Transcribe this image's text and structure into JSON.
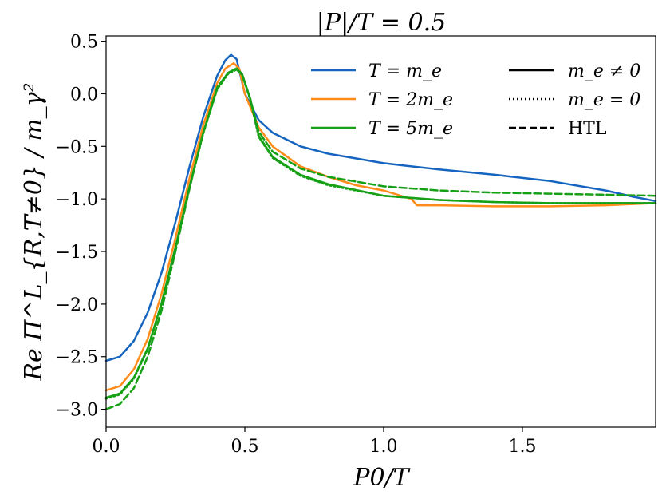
{
  "chart_data": {
    "type": "line",
    "title": "|P|/T = 0.5",
    "xlabel": "P0/T",
    "ylabel": "Re Π^L_{R,T≠0} / m_γ²",
    "xlim": [
      0.0,
      1.98
    ],
    "ylim": [
      -3.17,
      0.55
    ],
    "x_ticks": [
      0.0,
      0.5,
      1.0,
      1.5
    ],
    "x_tick_labels": [
      "0.0",
      "0.5",
      "1.0",
      "1.5"
    ],
    "y_ticks": [
      0.5,
      0.0,
      -0.5,
      -1.0,
      -1.5,
      -2.0,
      -2.5,
      -3.0
    ],
    "y_tick_labels": [
      "0.5",
      "0.0",
      "−0.5",
      "−1.0",
      "−1.5",
      "−2.0",
      "−2.5",
      "−3.0"
    ],
    "grid": false,
    "colors": {
      "blue": "#1565c0",
      "orange": "#ff8c1a",
      "green": "#16a016"
    },
    "legend_colors": [
      {
        "label": "T = m_e",
        "color": "#1565c0"
      },
      {
        "label": "T = 2m_e",
        "color": "#ff8c1a"
      },
      {
        "label": "T = 5m_e",
        "color": "#16a016"
      }
    ],
    "legend_styles": [
      {
        "label": "m_e ≠ 0",
        "style": "solid"
      },
      {
        "label": "m_e = 0",
        "style": "dotted"
      },
      {
        "label": "HTL",
        "style": "dashed"
      }
    ],
    "series": [
      {
        "name": "T = m_e, m_e ≠ 0",
        "color": "#1565c0",
        "style": "solid",
        "x": [
          0.0,
          0.05,
          0.1,
          0.15,
          0.2,
          0.25,
          0.3,
          0.35,
          0.4,
          0.43,
          0.45,
          0.47,
          0.5,
          0.55,
          0.6,
          0.7,
          0.8,
          1.0,
          1.2,
          1.4,
          1.6,
          1.8,
          1.9,
          1.98
        ],
        "y": [
          -2.54,
          -2.5,
          -2.35,
          -2.08,
          -1.7,
          -1.22,
          -0.7,
          -0.22,
          0.17,
          0.32,
          0.37,
          0.33,
          0.0,
          -0.25,
          -0.37,
          -0.5,
          -0.57,
          -0.66,
          -0.72,
          -0.77,
          -0.83,
          -0.92,
          -0.98,
          -1.02
        ]
      },
      {
        "name": "T = 2m_e, m_e ≠ 0",
        "color": "#ff8c1a",
        "style": "solid",
        "x": [
          0.0,
          0.05,
          0.1,
          0.15,
          0.2,
          0.25,
          0.3,
          0.35,
          0.4,
          0.43,
          0.46,
          0.48,
          0.5,
          0.55,
          0.6,
          0.7,
          0.8,
          0.9,
          1.0,
          1.1,
          1.12,
          1.2,
          1.4,
          1.6,
          1.8,
          1.98
        ],
        "y": [
          -2.82,
          -2.78,
          -2.62,
          -2.33,
          -1.9,
          -1.37,
          -0.81,
          -0.3,
          0.1,
          0.24,
          0.29,
          0.24,
          0.0,
          -0.32,
          -0.5,
          -0.69,
          -0.79,
          -0.87,
          -0.92,
          -1.0,
          -1.06,
          -1.06,
          -1.07,
          -1.07,
          -1.06,
          -1.04
        ]
      },
      {
        "name": "T = 5m_e, m_e ≠ 0",
        "color": "#16a016",
        "style": "solid",
        "x": [
          0.0,
          0.05,
          0.1,
          0.15,
          0.2,
          0.25,
          0.3,
          0.35,
          0.4,
          0.44,
          0.47,
          0.49,
          0.52,
          0.55,
          0.6,
          0.7,
          0.8,
          1.0,
          1.2,
          1.4,
          1.6,
          1.8,
          1.98
        ],
        "y": [
          -2.89,
          -2.85,
          -2.7,
          -2.42,
          -1.99,
          -1.46,
          -0.89,
          -0.37,
          0.05,
          0.2,
          0.24,
          0.19,
          -0.05,
          -0.4,
          -0.6,
          -0.77,
          -0.86,
          -0.97,
          -1.01,
          -1.03,
          -1.04,
          -1.04,
          -1.04
        ]
      },
      {
        "name": "T = 5m_e, m_e = 0",
        "color": "#16a016",
        "style": "dotted",
        "x": [
          0.0,
          0.05,
          0.1,
          0.15,
          0.2,
          0.25,
          0.3,
          0.35,
          0.4,
          0.44,
          0.47,
          0.49,
          0.52,
          0.55,
          0.6,
          0.7,
          0.8,
          1.0,
          1.2,
          1.4,
          1.6,
          1.8,
          1.98
        ],
        "y": [
          -2.9,
          -2.86,
          -2.71,
          -2.43,
          -2.0,
          -1.47,
          -0.9,
          -0.38,
          0.04,
          0.19,
          0.23,
          0.18,
          -0.06,
          -0.41,
          -0.61,
          -0.78,
          -0.87,
          -0.97,
          -1.01,
          -1.03,
          -1.04,
          -1.04,
          -1.04
        ]
      },
      {
        "name": "T = 5m_e, HTL",
        "color": "#16a016",
        "style": "dashed",
        "x": [
          0.0,
          0.05,
          0.1,
          0.15,
          0.2,
          0.25,
          0.3,
          0.35,
          0.4,
          0.44,
          0.47,
          0.49,
          0.52,
          0.55,
          0.6,
          0.7,
          0.8,
          1.0,
          1.2,
          1.4,
          1.6,
          1.8,
          1.98
        ],
        "y": [
          -3.0,
          -2.95,
          -2.8,
          -2.5,
          -2.06,
          -1.5,
          -0.91,
          -0.37,
          0.06,
          0.2,
          0.24,
          0.18,
          -0.05,
          -0.36,
          -0.55,
          -0.71,
          -0.79,
          -0.88,
          -0.92,
          -0.94,
          -0.95,
          -0.96,
          -0.97
        ]
      }
    ]
  }
}
